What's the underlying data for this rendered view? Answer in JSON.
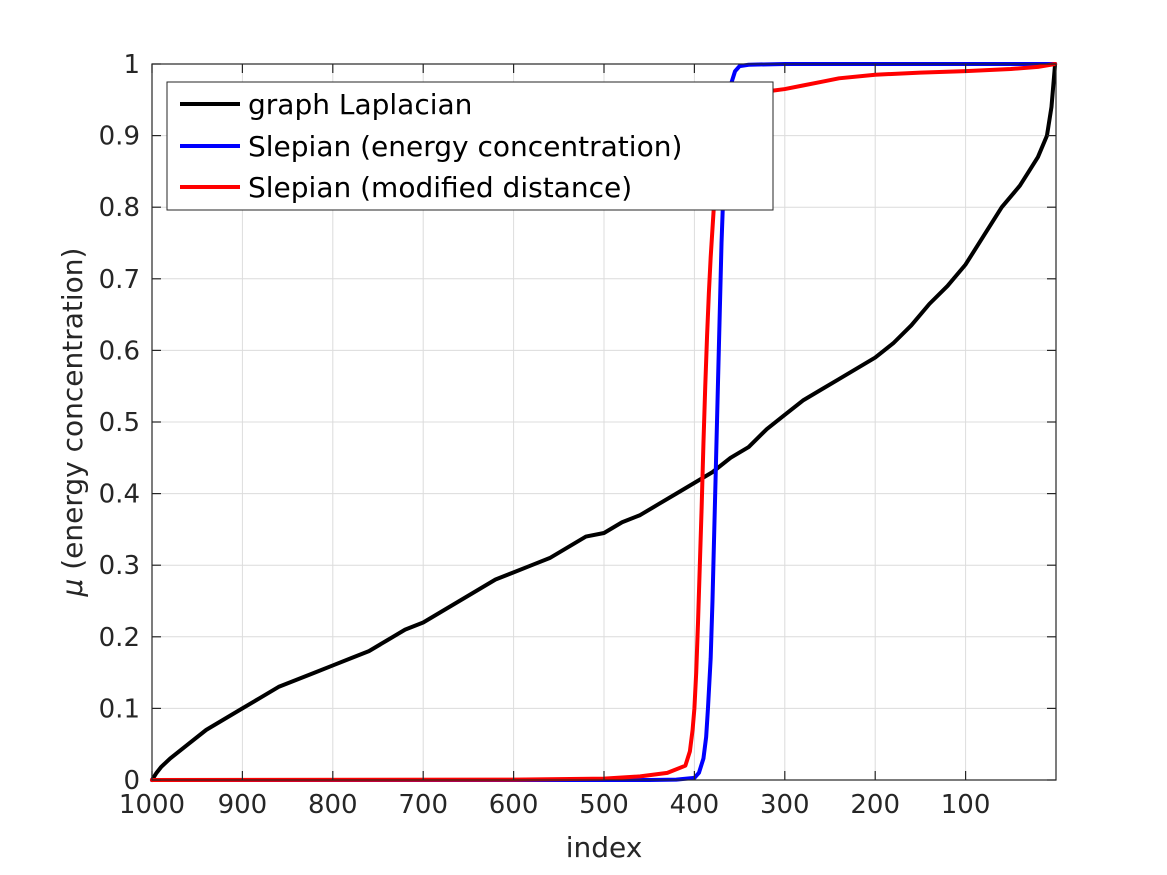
{
  "chart_data": {
    "type": "line",
    "title": "",
    "xlabel": "index",
    "ylabel_symbol": "μ",
    "ylabel": "(energy concentration)",
    "xlim": [
      1000,
      0
    ],
    "x_reversed": true,
    "ylim": [
      0,
      1
    ],
    "x_ticks": [
      1000,
      900,
      800,
      700,
      600,
      500,
      400,
      300,
      200,
      100
    ],
    "x_tick_labels": [
      "1000",
      "900",
      "800",
      "700",
      "600",
      "500",
      "400",
      "300",
      "200",
      "100"
    ],
    "y_ticks": [
      0,
      0.1,
      0.2,
      0.3,
      0.4,
      0.5,
      0.6,
      0.7,
      0.8,
      0.9,
      1
    ],
    "y_tick_labels": [
      "0",
      "0.1",
      "0.2",
      "0.3",
      "0.4",
      "0.5",
      "0.6",
      "0.7",
      "0.8",
      "0.9",
      "1"
    ],
    "grid": true,
    "legend_position": "top-left",
    "series": [
      {
        "name": "graph Laplacian",
        "color": "#000000",
        "x": [
          1000,
          995,
          990,
          980,
          960,
          940,
          920,
          900,
          880,
          860,
          840,
          820,
          800,
          780,
          760,
          740,
          720,
          700,
          680,
          660,
          640,
          620,
          600,
          580,
          560,
          540,
          520,
          500,
          480,
          460,
          440,
          420,
          400,
          380,
          360,
          340,
          320,
          300,
          280,
          260,
          240,
          220,
          200,
          180,
          160,
          140,
          120,
          100,
          80,
          60,
          40,
          30,
          20,
          10,
          5,
          1
        ],
        "y": [
          0,
          0.01,
          0.018,
          0.03,
          0.05,
          0.07,
          0.085,
          0.1,
          0.115,
          0.13,
          0.14,
          0.15,
          0.16,
          0.17,
          0.18,
          0.195,
          0.21,
          0.22,
          0.235,
          0.25,
          0.265,
          0.28,
          0.29,
          0.3,
          0.31,
          0.325,
          0.34,
          0.345,
          0.36,
          0.37,
          0.385,
          0.4,
          0.415,
          0.43,
          0.45,
          0.465,
          0.49,
          0.51,
          0.53,
          0.545,
          0.56,
          0.575,
          0.59,
          0.61,
          0.635,
          0.665,
          0.69,
          0.72,
          0.76,
          0.8,
          0.83,
          0.85,
          0.87,
          0.9,
          0.94,
          1
        ]
      },
      {
        "name": "Slepian (energy concentration)",
        "color": "#0000ff",
        "x": [
          1000,
          600,
          450,
          420,
          400,
          395,
          390,
          387,
          385,
          382,
          380,
          378,
          376,
          374,
          372,
          370,
          368,
          366,
          364,
          362,
          360,
          355,
          350,
          340,
          300,
          200,
          100,
          1
        ],
        "y": [
          0,
          0,
          0,
          0.0005,
          0.003,
          0.01,
          0.03,
          0.06,
          0.1,
          0.17,
          0.25,
          0.35,
          0.45,
          0.55,
          0.65,
          0.75,
          0.82,
          0.88,
          0.92,
          0.95,
          0.97,
          0.99,
          0.997,
          0.999,
          1,
          1,
          1,
          1
        ]
      },
      {
        "name": "Slepian (modified distance)",
        "color": "#ff0000",
        "x": [
          1000,
          600,
          500,
          460,
          430,
          410,
          405,
          402,
          400,
          398,
          396,
          394,
          392,
          390,
          388,
          386,
          384,
          382,
          380,
          378,
          376,
          374,
          372,
          370,
          368,
          365,
          360,
          350,
          330,
          300,
          280,
          260,
          240,
          200,
          150,
          100,
          50,
          20,
          1
        ],
        "y": [
          0,
          0.0005,
          0.002,
          0.005,
          0.01,
          0.02,
          0.04,
          0.07,
          0.1,
          0.15,
          0.22,
          0.3,
          0.38,
          0.47,
          0.55,
          0.62,
          0.68,
          0.73,
          0.77,
          0.81,
          0.84,
          0.87,
          0.89,
          0.91,
          0.925,
          0.94,
          0.95,
          0.955,
          0.96,
          0.965,
          0.97,
          0.975,
          0.98,
          0.985,
          0.988,
          0.99,
          0.993,
          0.996,
          1
        ]
      }
    ]
  }
}
